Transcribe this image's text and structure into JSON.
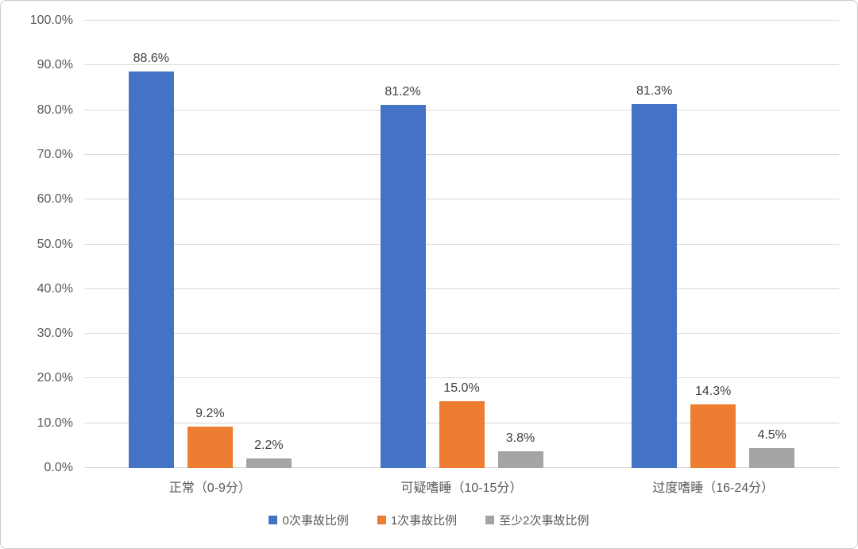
{
  "chart_data": {
    "type": "bar",
    "title": "",
    "xlabel": "",
    "ylabel": "",
    "categories": [
      "正常（0-9分）",
      "可疑嗜睡（10-15分）",
      "过度嗜睡（16-24分）"
    ],
    "series": [
      {
        "name": "0次事故比例",
        "color": "#4472C4",
        "values": [
          88.6,
          81.2,
          81.3
        ],
        "labels": [
          "88.6%",
          "81.2%",
          "81.3%"
        ]
      },
      {
        "name": "1次事故比例",
        "color": "#ED7D31",
        "values": [
          9.2,
          15.0,
          14.3
        ],
        "labels": [
          "9.2%",
          "15.0%",
          "14.3%"
        ]
      },
      {
        "name": "至少2次事故比例",
        "color": "#A5A5A5",
        "values": [
          2.2,
          3.8,
          4.5
        ],
        "labels": [
          "2.2%",
          "3.8%",
          "4.5%"
        ]
      }
    ],
    "ylim": [
      0,
      100
    ],
    "ytick_step": 10,
    "ytick_labels": [
      "0.0%",
      "10.0%",
      "20.0%",
      "30.0%",
      "40.0%",
      "50.0%",
      "60.0%",
      "70.0%",
      "80.0%",
      "90.0%",
      "100.0%"
    ],
    "grid": true,
    "legend_position": "bottom"
  },
  "style": {
    "gridline_color": "#d9d9d9",
    "axis_text_color": "#595959",
    "data_label_color": "#404040",
    "frame_border_color": "#c9c9c9",
    "background": "#ffffff"
  }
}
